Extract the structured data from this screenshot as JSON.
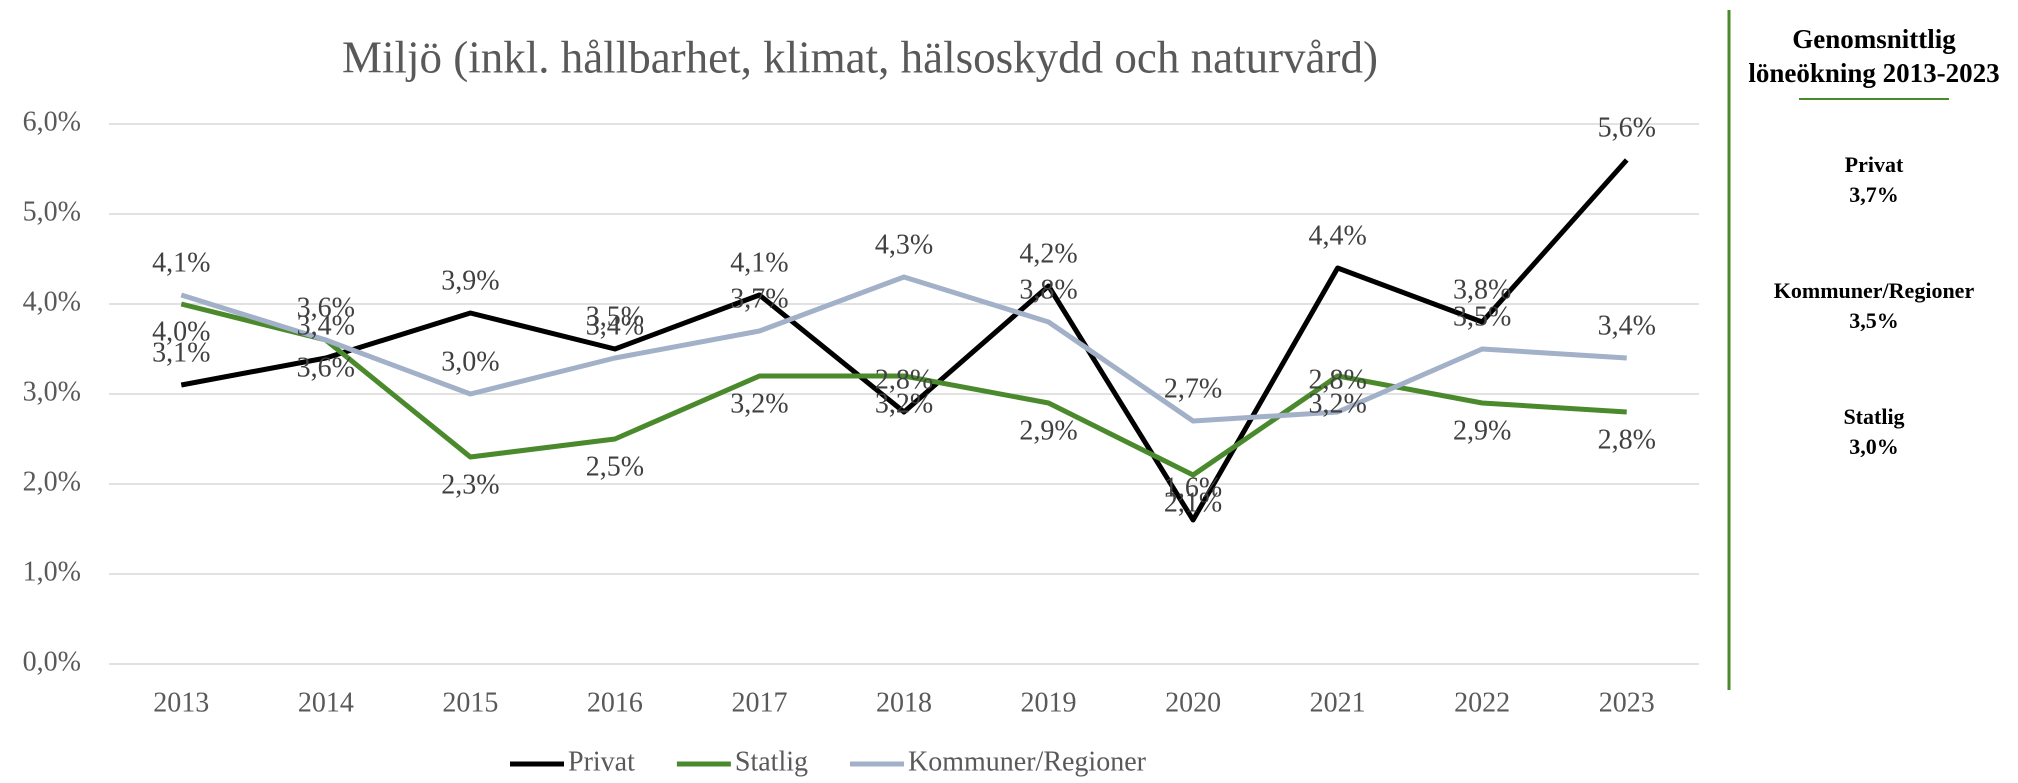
{
  "chart_data": {
    "type": "line",
    "title": "Miljö (inkl. hållbarhet, klimat, hälsoskydd och naturvård)",
    "categories": [
      "2013",
      "2014",
      "2015",
      "2016",
      "2017",
      "2018",
      "2019",
      "2020",
      "2021",
      "2022",
      "2023"
    ],
    "series": [
      {
        "name": "Privat",
        "color": "#000000",
        "values": [
          3.1,
          3.4,
          3.9,
          3.5,
          4.1,
          2.8,
          4.2,
          1.6,
          4.4,
          3.8,
          5.6
        ],
        "value_labels": [
          "3,1%",
          "3,4%",
          "3,9%",
          "3,5%",
          "4,1%",
          "2,8%",
          "4,2%",
          "1,6%",
          "4,4%",
          "3,8%",
          "5,6%"
        ]
      },
      {
        "name": "Statlig",
        "color": "#4a8a2c",
        "values": [
          4.0,
          3.6,
          2.3,
          2.5,
          3.2,
          3.2,
          2.9,
          2.1,
          3.2,
          2.9,
          2.8
        ],
        "value_labels": [
          "4,0%",
          "3,6%",
          "2,3%",
          "2,5%",
          "3,2%",
          "3,2%",
          "2,9%",
          "2,1%",
          "3,2%",
          "2,9%",
          "2,8%"
        ]
      },
      {
        "name": "Kommuner/Regioner",
        "color": "#a2b0c8",
        "values": [
          4.1,
          3.6,
          3.0,
          3.4,
          3.7,
          4.3,
          3.8,
          2.7,
          2.8,
          3.5,
          3.4
        ],
        "value_labels": [
          "4,1%",
          "3,6%",
          "3,0%",
          "3,4%",
          "3,7%",
          "4,3%",
          "3,8%",
          "2,7%",
          "2,8%",
          "3,5%",
          "3,4%"
        ]
      }
    ],
    "ylim": [
      0,
      6
    ],
    "yticks": [
      {
        "value": 0,
        "label": "0,0%"
      },
      {
        "value": 1,
        "label": "1,0%"
      },
      {
        "value": 2,
        "label": "2,0%"
      },
      {
        "value": 3,
        "label": "3,0%"
      },
      {
        "value": 4,
        "label": "4,0%"
      },
      {
        "value": 5,
        "label": "5,0%"
      },
      {
        "value": 6,
        "label": "6,0%"
      }
    ],
    "grid": true,
    "legend": "bottom"
  },
  "sidebar": {
    "title": "Genomsnittlig löneökning 2013-2023",
    "items": [
      {
        "name": "Privat",
        "value": "3,7%"
      },
      {
        "name": "Kommuner/Regioner",
        "value": "3,5%"
      },
      {
        "name": "Statlig",
        "value": "3,0%"
      }
    ]
  }
}
